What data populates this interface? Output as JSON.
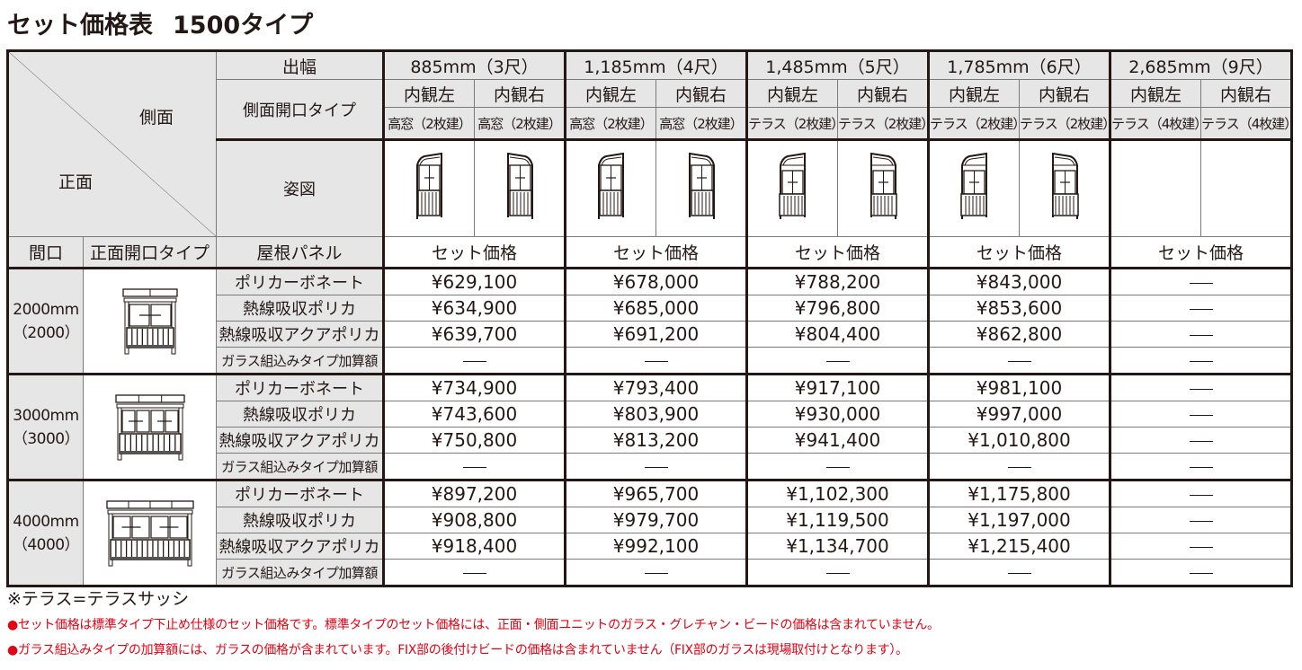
{
  "title": {
    "main": "セット価格表",
    "sub": "1500タイプ"
  },
  "header": {
    "corner_side": "側面",
    "corner_front": "正面",
    "row_label_depth": "出幅",
    "row_label_side_type": "側面開口タイプ",
    "row_label_figure": "姿図",
    "col_maguchi": "間口",
    "col_front_type": "正面開口タイプ",
    "col_roof_panel": "屋根パネル",
    "set_price_label": "セット価格"
  },
  "depths": [
    {
      "label": "885mm（3尺）",
      "sides": [
        {
          "view": "内観左",
          "type": "高窓（2枚建）",
          "figure": "tall-left"
        },
        {
          "view": "内観右",
          "type": "高窓（2枚建）",
          "figure": "tall-right"
        }
      ]
    },
    {
      "label": "1,185mm（4尺）",
      "sides": [
        {
          "view": "内観左",
          "type": "高窓（2枚建）",
          "figure": "tall-left"
        },
        {
          "view": "内観右",
          "type": "高窓（2枚建）",
          "figure": "tall-right"
        }
      ]
    },
    {
      "label": "1,485mm（5尺）",
      "sides": [
        {
          "view": "内観左",
          "type": "テラス（2枚建）",
          "figure": "terrace-left"
        },
        {
          "view": "内観右",
          "type": "テラス（2枚建）",
          "figure": "terrace-right"
        }
      ]
    },
    {
      "label": "1,785mm（6尺）",
      "sides": [
        {
          "view": "内観左",
          "type": "テラス（2枚建）",
          "figure": "terrace-left"
        },
        {
          "view": "内観右",
          "type": "テラス（2枚建）",
          "figure": "terrace-right"
        }
      ]
    },
    {
      "label": "2,685mm（9尺）",
      "sides": [
        {
          "view": "内観左",
          "type": "テラス（4枚建）",
          "figure": "none"
        },
        {
          "view": "内観右",
          "type": "テラス（4枚建）",
          "figure": "none"
        }
      ]
    }
  ],
  "panels": [
    "ポリカーボネート",
    "熱線吸収ポリカ",
    "熱線吸収アクアポリカ",
    "ガラス組込みタイプ加算額"
  ],
  "groups": [
    {
      "maguchi": "2000mm",
      "maguchi_sub": "（2000）",
      "front_figure": "front-2",
      "prices": [
        [
          "¥629,100",
          "¥678,000",
          "¥788,200",
          "¥843,000",
          "—"
        ],
        [
          "¥634,900",
          "¥685,000",
          "¥796,800",
          "¥853,600",
          "—"
        ],
        [
          "¥639,700",
          "¥691,200",
          "¥804,400",
          "¥862,800",
          "—"
        ],
        [
          "—",
          "—",
          "—",
          "—",
          "—"
        ]
      ]
    },
    {
      "maguchi": "3000mm",
      "maguchi_sub": "（3000）",
      "front_figure": "front-3",
      "prices": [
        [
          "¥734,900",
          "¥793,400",
          "¥917,100",
          "¥981,100",
          "—"
        ],
        [
          "¥743,600",
          "¥803,900",
          "¥930,000",
          "¥997,000",
          "—"
        ],
        [
          "¥750,800",
          "¥813,200",
          "¥941,400",
          "¥1,010,800",
          "—"
        ],
        [
          "—",
          "—",
          "—",
          "—",
          "—"
        ]
      ]
    },
    {
      "maguchi": "4000mm",
      "maguchi_sub": "（4000）",
      "front_figure": "front-4",
      "prices": [
        [
          "¥897,200",
          "¥965,700",
          "¥1,102,300",
          "¥1,175,800",
          "—"
        ],
        [
          "¥908,800",
          "¥979,700",
          "¥1,119,500",
          "¥1,197,000",
          "—"
        ],
        [
          "¥918,400",
          "¥992,100",
          "¥1,134,700",
          "¥1,215,400",
          "—"
        ],
        [
          "—",
          "—",
          "—",
          "—",
          "—"
        ]
      ]
    }
  ],
  "notes": {
    "terrace": "※テラス=テラスサッシ",
    "red": [
      "●セット価格は標準タイプ下止め仕様のセット価格です。標準タイプのセット価格には、正面・側面ユニットのガラス・グレチャン・ビードの価格は含まれていません。",
      "●ガラス組込みタイプの加算額には、ガラスの価格が含まれています。FIX部の後付けビードの価格は含まれていません（FIX部のガラスは現場取付けとなります）。"
    ]
  },
  "colors": {
    "header_bg": "#e6e6e6",
    "note_red": "#e50012",
    "border": "#231815"
  }
}
